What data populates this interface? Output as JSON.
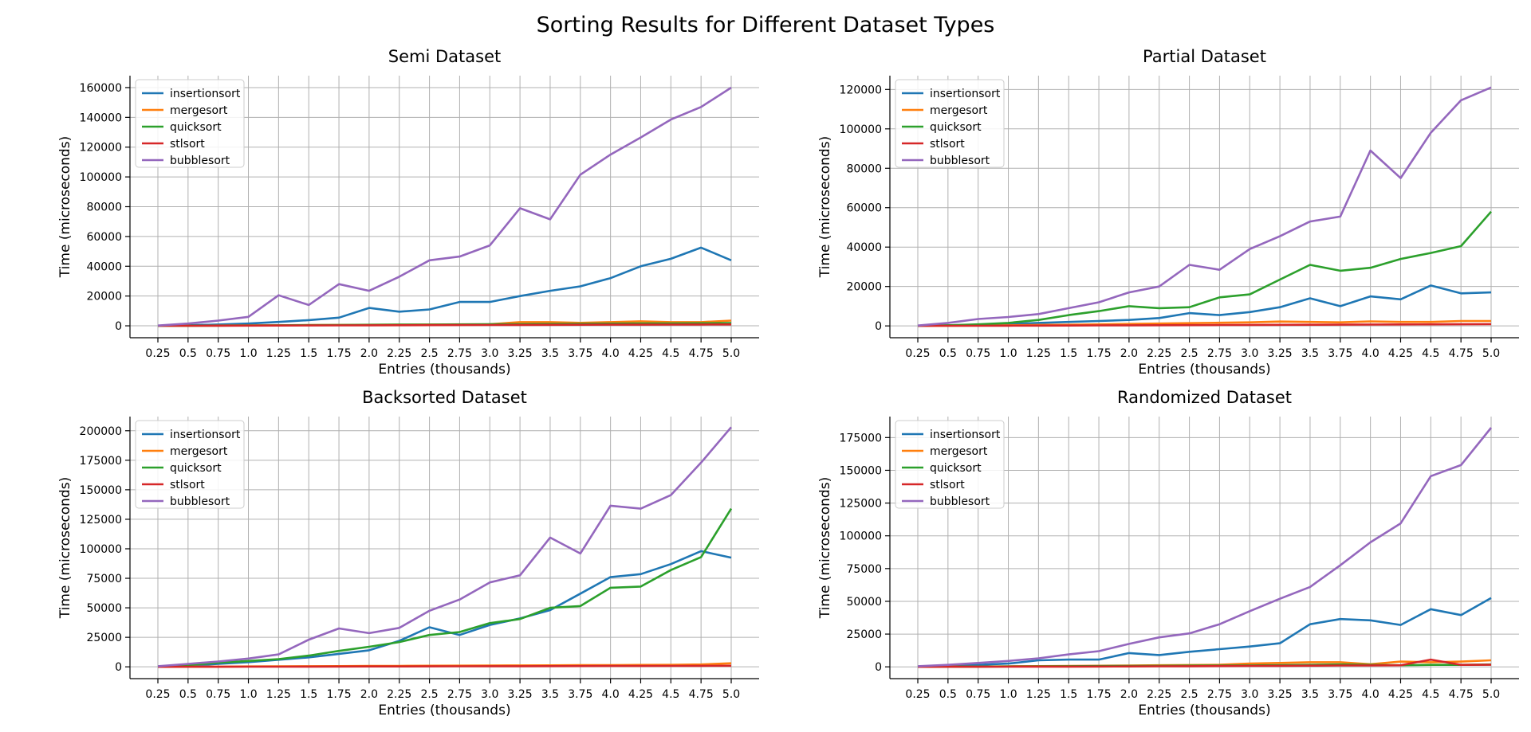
{
  "figure": {
    "suptitle": "Sorting Results for Different Dataset Types"
  },
  "colors": {
    "insertionsort": "#1f77b4",
    "mergesort": "#ff7f0e",
    "quicksort": "#2ca02c",
    "stlsort": "#d62728",
    "bubblesort": "#9467bd"
  },
  "chart_data": [
    {
      "type": "line",
      "title": "Semi Dataset",
      "xlabel": "Entries (thousands)",
      "ylabel": "Time (microseconds)",
      "x": [
        "0.25",
        "0.5",
        "0.75",
        "1.0",
        "1.25",
        "1.5",
        "1.75",
        "2.0",
        "2.25",
        "2.5",
        "2.75",
        "3.0",
        "3.25",
        "3.5",
        "3.75",
        "4.0",
        "4.25",
        "4.5",
        "4.75",
        "5.0"
      ],
      "yticks": [
        0,
        20000,
        40000,
        60000,
        80000,
        100000,
        120000,
        140000,
        160000
      ],
      "ylim": [
        -8000,
        168000
      ],
      "grid": true,
      "legend": "top-left",
      "series": [
        {
          "name": "insertionsort",
          "values": [
            100,
            400,
            900,
            1500,
            2600,
            3800,
            5500,
            12000,
            9500,
            11000,
            16000,
            16000,
            20000,
            23500,
            26500,
            32000,
            40000,
            45000,
            52500,
            44000
          ]
        },
        {
          "name": "mergesort",
          "values": [
            50,
            100,
            200,
            300,
            400,
            500,
            600,
            700,
            800,
            900,
            1000,
            1100,
            2500,
            2500,
            2000,
            2500,
            3000,
            2500,
            2500,
            3500
          ]
        },
        {
          "name": "quicksort",
          "values": [
            40,
            80,
            150,
            250,
            350,
            450,
            550,
            650,
            750,
            850,
            950,
            1050,
            1150,
            1250,
            1350,
            1450,
            1550,
            1650,
            1750,
            1850
          ]
        },
        {
          "name": "stlsort",
          "values": [
            20,
            50,
            100,
            150,
            200,
            250,
            300,
            350,
            400,
            450,
            500,
            550,
            600,
            650,
            700,
            750,
            800,
            850,
            900,
            950
          ]
        },
        {
          "name": "bubblesort",
          "values": [
            200,
            1500,
            3500,
            6000,
            20500,
            14000,
            28000,
            23500,
            33000,
            44000,
            46500,
            54000,
            79000,
            71500,
            101500,
            115000,
            126500,
            138500,
            147000,
            160000
          ]
        }
      ]
    },
    {
      "type": "line",
      "title": "Partial Dataset",
      "xlabel": "Entries (thousands)",
      "ylabel": "Time (microseconds)",
      "x": [
        "0.25",
        "0.5",
        "0.75",
        "1.0",
        "1.25",
        "1.5",
        "1.75",
        "2.0",
        "2.25",
        "2.5",
        "2.75",
        "3.0",
        "3.25",
        "3.5",
        "3.75",
        "4.0",
        "4.25",
        "4.5",
        "4.75",
        "5.0"
      ],
      "yticks": [
        0,
        20000,
        40000,
        60000,
        80000,
        100000,
        120000
      ],
      "ylim": [
        -6000,
        127000
      ],
      "grid": true,
      "legend": "top-left",
      "series": [
        {
          "name": "insertionsort",
          "values": [
            50,
            300,
            600,
            1000,
            1500,
            2000,
            2500,
            3000,
            4000,
            6500,
            5500,
            7000,
            9500,
            14000,
            10000,
            15000,
            13500,
            20500,
            16500,
            17000
          ]
        },
        {
          "name": "mergesort",
          "values": [
            50,
            100,
            200,
            300,
            500,
            600,
            800,
            1000,
            1200,
            1400,
            1600,
            1800,
            2200,
            2000,
            1800,
            2300,
            2000,
            2000,
            2500,
            2500
          ]
        },
        {
          "name": "quicksort",
          "values": [
            100,
            300,
            800,
            1500,
            3000,
            5500,
            7500,
            10000,
            9000,
            9500,
            14500,
            16000,
            23500,
            31000,
            28000,
            29500,
            34000,
            37000,
            40500,
            58000
          ]
        },
        {
          "name": "stlsort",
          "values": [
            20,
            50,
            80,
            100,
            150,
            200,
            250,
            300,
            350,
            400,
            450,
            500,
            550,
            600,
            650,
            700,
            750,
            800,
            850,
            900
          ]
        },
        {
          "name": "bubblesort",
          "values": [
            200,
            1500,
            3500,
            4500,
            6000,
            9000,
            12000,
            17000,
            20000,
            31000,
            28500,
            39000,
            45500,
            53000,
            55500,
            89000,
            75000,
            98000,
            114500,
            121000
          ]
        }
      ]
    },
    {
      "type": "line",
      "title": "Backsorted Dataset",
      "xlabel": "Entries (thousands)",
      "ylabel": "Time (microseconds)",
      "x": [
        "0.25",
        "0.5",
        "0.75",
        "1.0",
        "1.25",
        "1.5",
        "1.75",
        "2.0",
        "2.25",
        "2.5",
        "2.75",
        "3.0",
        "3.25",
        "3.5",
        "3.75",
        "4.0",
        "4.25",
        "4.5",
        "4.75",
        "5.0"
      ],
      "yticks": [
        0,
        25000,
        50000,
        75000,
        100000,
        125000,
        150000,
        175000,
        200000
      ],
      "ylim": [
        -10000,
        212000
      ],
      "grid": true,
      "legend": "top-left",
      "series": [
        {
          "name": "insertionsort",
          "values": [
            300,
            1000,
            2500,
            4000,
            6000,
            8000,
            11000,
            14000,
            22000,
            33500,
            27000,
            35500,
            41000,
            48000,
            62000,
            76000,
            78500,
            87000,
            98000,
            92500
          ]
        },
        {
          "name": "mergesort",
          "values": [
            50,
            100,
            200,
            300,
            400,
            500,
            600,
            700,
            800,
            900,
            1000,
            1100,
            1200,
            1300,
            1400,
            1500,
            1600,
            1700,
            2000,
            3000
          ]
        },
        {
          "name": "quicksort",
          "values": [
            300,
            1500,
            3500,
            5000,
            6500,
            9500,
            13500,
            17000,
            21000,
            27000,
            29500,
            37000,
            40500,
            50000,
            51500,
            67000,
            68000,
            82000,
            93000,
            134000
          ]
        },
        {
          "name": "stlsort",
          "values": [
            20,
            50,
            80,
            100,
            150,
            200,
            250,
            300,
            350,
            400,
            450,
            500,
            550,
            600,
            650,
            700,
            750,
            800,
            850,
            900
          ]
        },
        {
          "name": "bubblesort",
          "values": [
            500,
            2500,
            4500,
            7000,
            10500,
            23000,
            32500,
            28500,
            33000,
            47500,
            57000,
            71500,
            77500,
            109500,
            96000,
            136500,
            134000,
            145500,
            173000,
            203000
          ]
        }
      ]
    },
    {
      "type": "line",
      "title": "Randomized Dataset",
      "xlabel": "Entries (thousands)",
      "ylabel": "Time (microseconds)",
      "x": [
        "0.25",
        "0.5",
        "0.75",
        "1.0",
        "1.25",
        "1.5",
        "1.75",
        "2.0",
        "2.25",
        "2.5",
        "2.75",
        "3.0",
        "3.25",
        "3.5",
        "3.75",
        "4.0",
        "4.25",
        "4.5",
        "4.75",
        "5.0"
      ],
      "yticks": [
        0,
        25000,
        50000,
        75000,
        100000,
        125000,
        150000,
        175000
      ],
      "ylim": [
        -9000,
        191000
      ],
      "grid": true,
      "legend": "top-left",
      "series": [
        {
          "name": "insertionsort",
          "values": [
            200,
            800,
            1500,
            2500,
            5000,
            5500,
            5500,
            10500,
            9000,
            11500,
            13500,
            15500,
            18000,
            32500,
            36500,
            35500,
            32000,
            44000,
            39500,
            52500
          ]
        },
        {
          "name": "mergesort",
          "values": [
            50,
            150,
            250,
            400,
            550,
            700,
            850,
            1000,
            1200,
            1400,
            1600,
            2500,
            3000,
            3500,
            3500,
            2000,
            4000,
            3500,
            4000,
            5000
          ]
        },
        {
          "name": "quicksort",
          "values": [
            50,
            100,
            200,
            300,
            400,
            500,
            600,
            700,
            800,
            900,
            1000,
            1100,
            1300,
            1500,
            1800,
            1500,
            1200,
            1500,
            1500,
            1800
          ]
        },
        {
          "name": "stlsort",
          "values": [
            20,
            50,
            80,
            100,
            150,
            200,
            250,
            300,
            400,
            500,
            600,
            700,
            800,
            900,
            1000,
            1100,
            1200,
            5500,
            1500,
            1600
          ]
        },
        {
          "name": "bubblesort",
          "values": [
            500,
            1500,
            3000,
            4500,
            6500,
            9500,
            12000,
            17500,
            22500,
            25500,
            32500,
            42500,
            52000,
            61000,
            77500,
            95000,
            109500,
            145500,
            154000,
            182500
          ]
        }
      ]
    }
  ]
}
